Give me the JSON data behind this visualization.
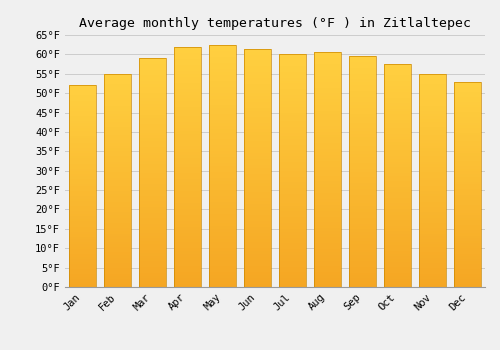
{
  "title": "Average monthly temperatures (°F ) in Zitlaltepec",
  "months": [
    "Jan",
    "Feb",
    "Mar",
    "Apr",
    "May",
    "Jun",
    "Jul",
    "Aug",
    "Sep",
    "Oct",
    "Nov",
    "Dec"
  ],
  "values": [
    52,
    55,
    59,
    62,
    62.5,
    61.5,
    60,
    60.5,
    59.5,
    57.5,
    55,
    53
  ],
  "bar_color_bottom": "#F5A623",
  "bar_color_top": "#FFD040",
  "bar_edge_color": "#CC8800",
  "background_color": "#F0F0F0",
  "grid_color": "#CCCCCC",
  "ylim": [
    0,
    65
  ],
  "yticks": [
    0,
    5,
    10,
    15,
    20,
    25,
    30,
    35,
    40,
    45,
    50,
    55,
    60,
    65
  ],
  "ytick_labels": [
    "0°F",
    "5°F",
    "10°F",
    "15°F",
    "20°F",
    "25°F",
    "30°F",
    "35°F",
    "40°F",
    "45°F",
    "50°F",
    "55°F",
    "60°F",
    "65°F"
  ],
  "title_fontsize": 9.5,
  "tick_fontsize": 7.5,
  "font_family": "monospace",
  "bar_width": 0.75,
  "n_grad": 80
}
